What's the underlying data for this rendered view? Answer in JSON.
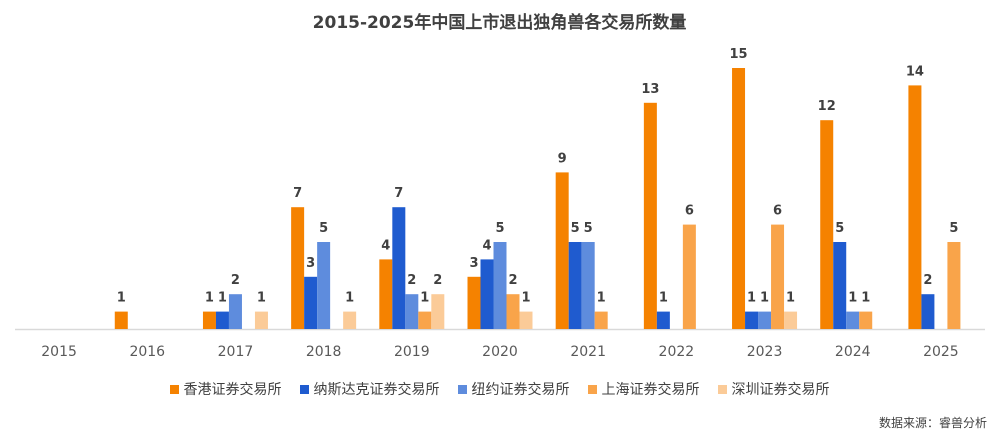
{
  "chart_data": {
    "type": "bar",
    "title": "2015-2025年中国上市退出独角兽各交易所数量",
    "categories": [
      "2015",
      "2016",
      "2017",
      "2018",
      "2019",
      "2020",
      "2021",
      "2022",
      "2023",
      "2024",
      "2025"
    ],
    "series": [
      {
        "name": "香港证券交易所",
        "color": "#F58200",
        "values": [
          0,
          1,
          1,
          7,
          4,
          3,
          9,
          13,
          15,
          12,
          14
        ]
      },
      {
        "name": "纳斯达克证券交易所",
        "color": "#1F5BCF",
        "values": [
          0,
          0,
          1,
          3,
          7,
          4,
          5,
          1,
          1,
          5,
          2
        ]
      },
      {
        "name": "纽约证券交易所",
        "color": "#5E8CDD",
        "values": [
          0,
          0,
          2,
          5,
          2,
          5,
          5,
          0,
          1,
          1,
          0
        ]
      },
      {
        "name": "上海证券交易所",
        "color": "#F9A44A",
        "values": [
          0,
          0,
          0,
          0,
          1,
          2,
          1,
          6,
          6,
          1,
          5
        ]
      },
      {
        "name": "深圳证券交易所",
        "color": "#FBCB98",
        "values": [
          0,
          0,
          1,
          1,
          2,
          1,
          0,
          0,
          1,
          0,
          0
        ]
      }
    ],
    "ylim": [
      0,
      15
    ],
    "grid": false,
    "legend_position": "bottom",
    "source": "数据来源：睿兽分析"
  }
}
